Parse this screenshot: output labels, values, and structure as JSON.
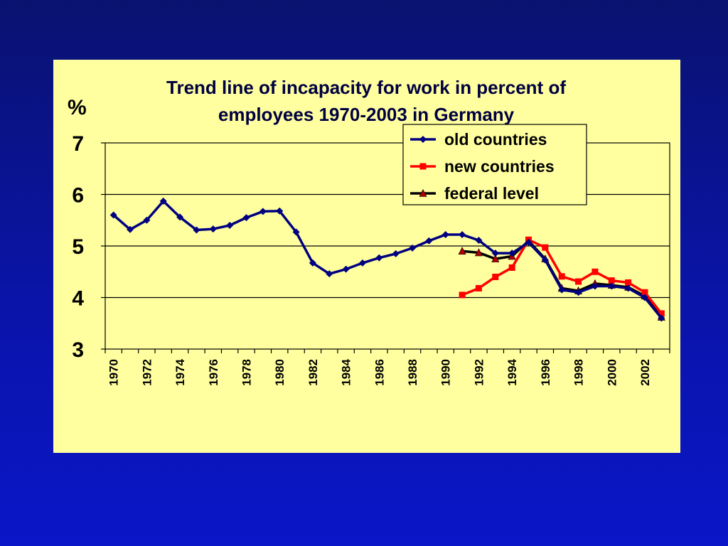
{
  "chart_data": {
    "type": "line",
    "title": [
      "Trend line of incapacity for work in percent of",
      "employees  1970-2003 in Germany"
    ],
    "unit_label": "%",
    "ylim": [
      3,
      7
    ],
    "yticks": [
      3,
      4,
      5,
      6,
      7
    ],
    "xlim": [
      1970,
      2003
    ],
    "xticks": [
      1970,
      1972,
      1974,
      1976,
      1978,
      1980,
      1982,
      1984,
      1986,
      1988,
      1990,
      1992,
      1994,
      1996,
      1998,
      2000,
      2002
    ],
    "grid": "horizontal",
    "legend_position": "top-right",
    "series": [
      {
        "name": "old countries",
        "color": "#000080",
        "marker": "diamond",
        "x": [
          1970,
          1971,
          1972,
          1973,
          1974,
          1975,
          1976,
          1977,
          1978,
          1979,
          1980,
          1981,
          1982,
          1983,
          1984,
          1985,
          1986,
          1987,
          1988,
          1989,
          1990,
          1991,
          1992,
          1993,
          1994,
          1995,
          1996,
          1997,
          1998,
          1999,
          2000,
          2001,
          2002,
          2003
        ],
        "y": [
          5.6,
          5.32,
          5.5,
          5.87,
          5.56,
          5.31,
          5.33,
          5.4,
          5.55,
          5.67,
          5.68,
          5.27,
          4.67,
          4.46,
          4.55,
          4.67,
          4.77,
          4.85,
          4.96,
          5.1,
          5.22,
          5.22,
          5.11,
          4.86,
          4.86,
          5.07,
          4.73,
          4.15,
          4.1,
          4.22,
          4.22,
          4.18,
          4.0,
          3.6
        ]
      },
      {
        "name": "new countries",
        "color": "#ff0000",
        "marker": "square",
        "x": [
          1991,
          1992,
          1993,
          1994,
          1995,
          1996,
          1997,
          1998,
          1999,
          2000,
          2001,
          2002,
          2003
        ],
        "y": [
          4.05,
          4.18,
          4.4,
          4.58,
          5.12,
          4.97,
          4.41,
          4.31,
          4.5,
          4.33,
          4.29,
          4.1,
          3.69
        ]
      },
      {
        "name": "federal level",
        "color": "#000000",
        "marker": "triangle",
        "marker_color": "#b00000",
        "x": [
          1991,
          1992,
          1993,
          1994,
          1995,
          1996,
          1997,
          1998,
          1999,
          2000,
          2001,
          2002,
          2003
        ],
        "y": [
          4.9,
          4.87,
          4.75,
          4.8,
          5.1,
          4.75,
          4.18,
          4.13,
          4.27,
          4.24,
          4.2,
          4.03,
          3.62
        ]
      }
    ]
  }
}
